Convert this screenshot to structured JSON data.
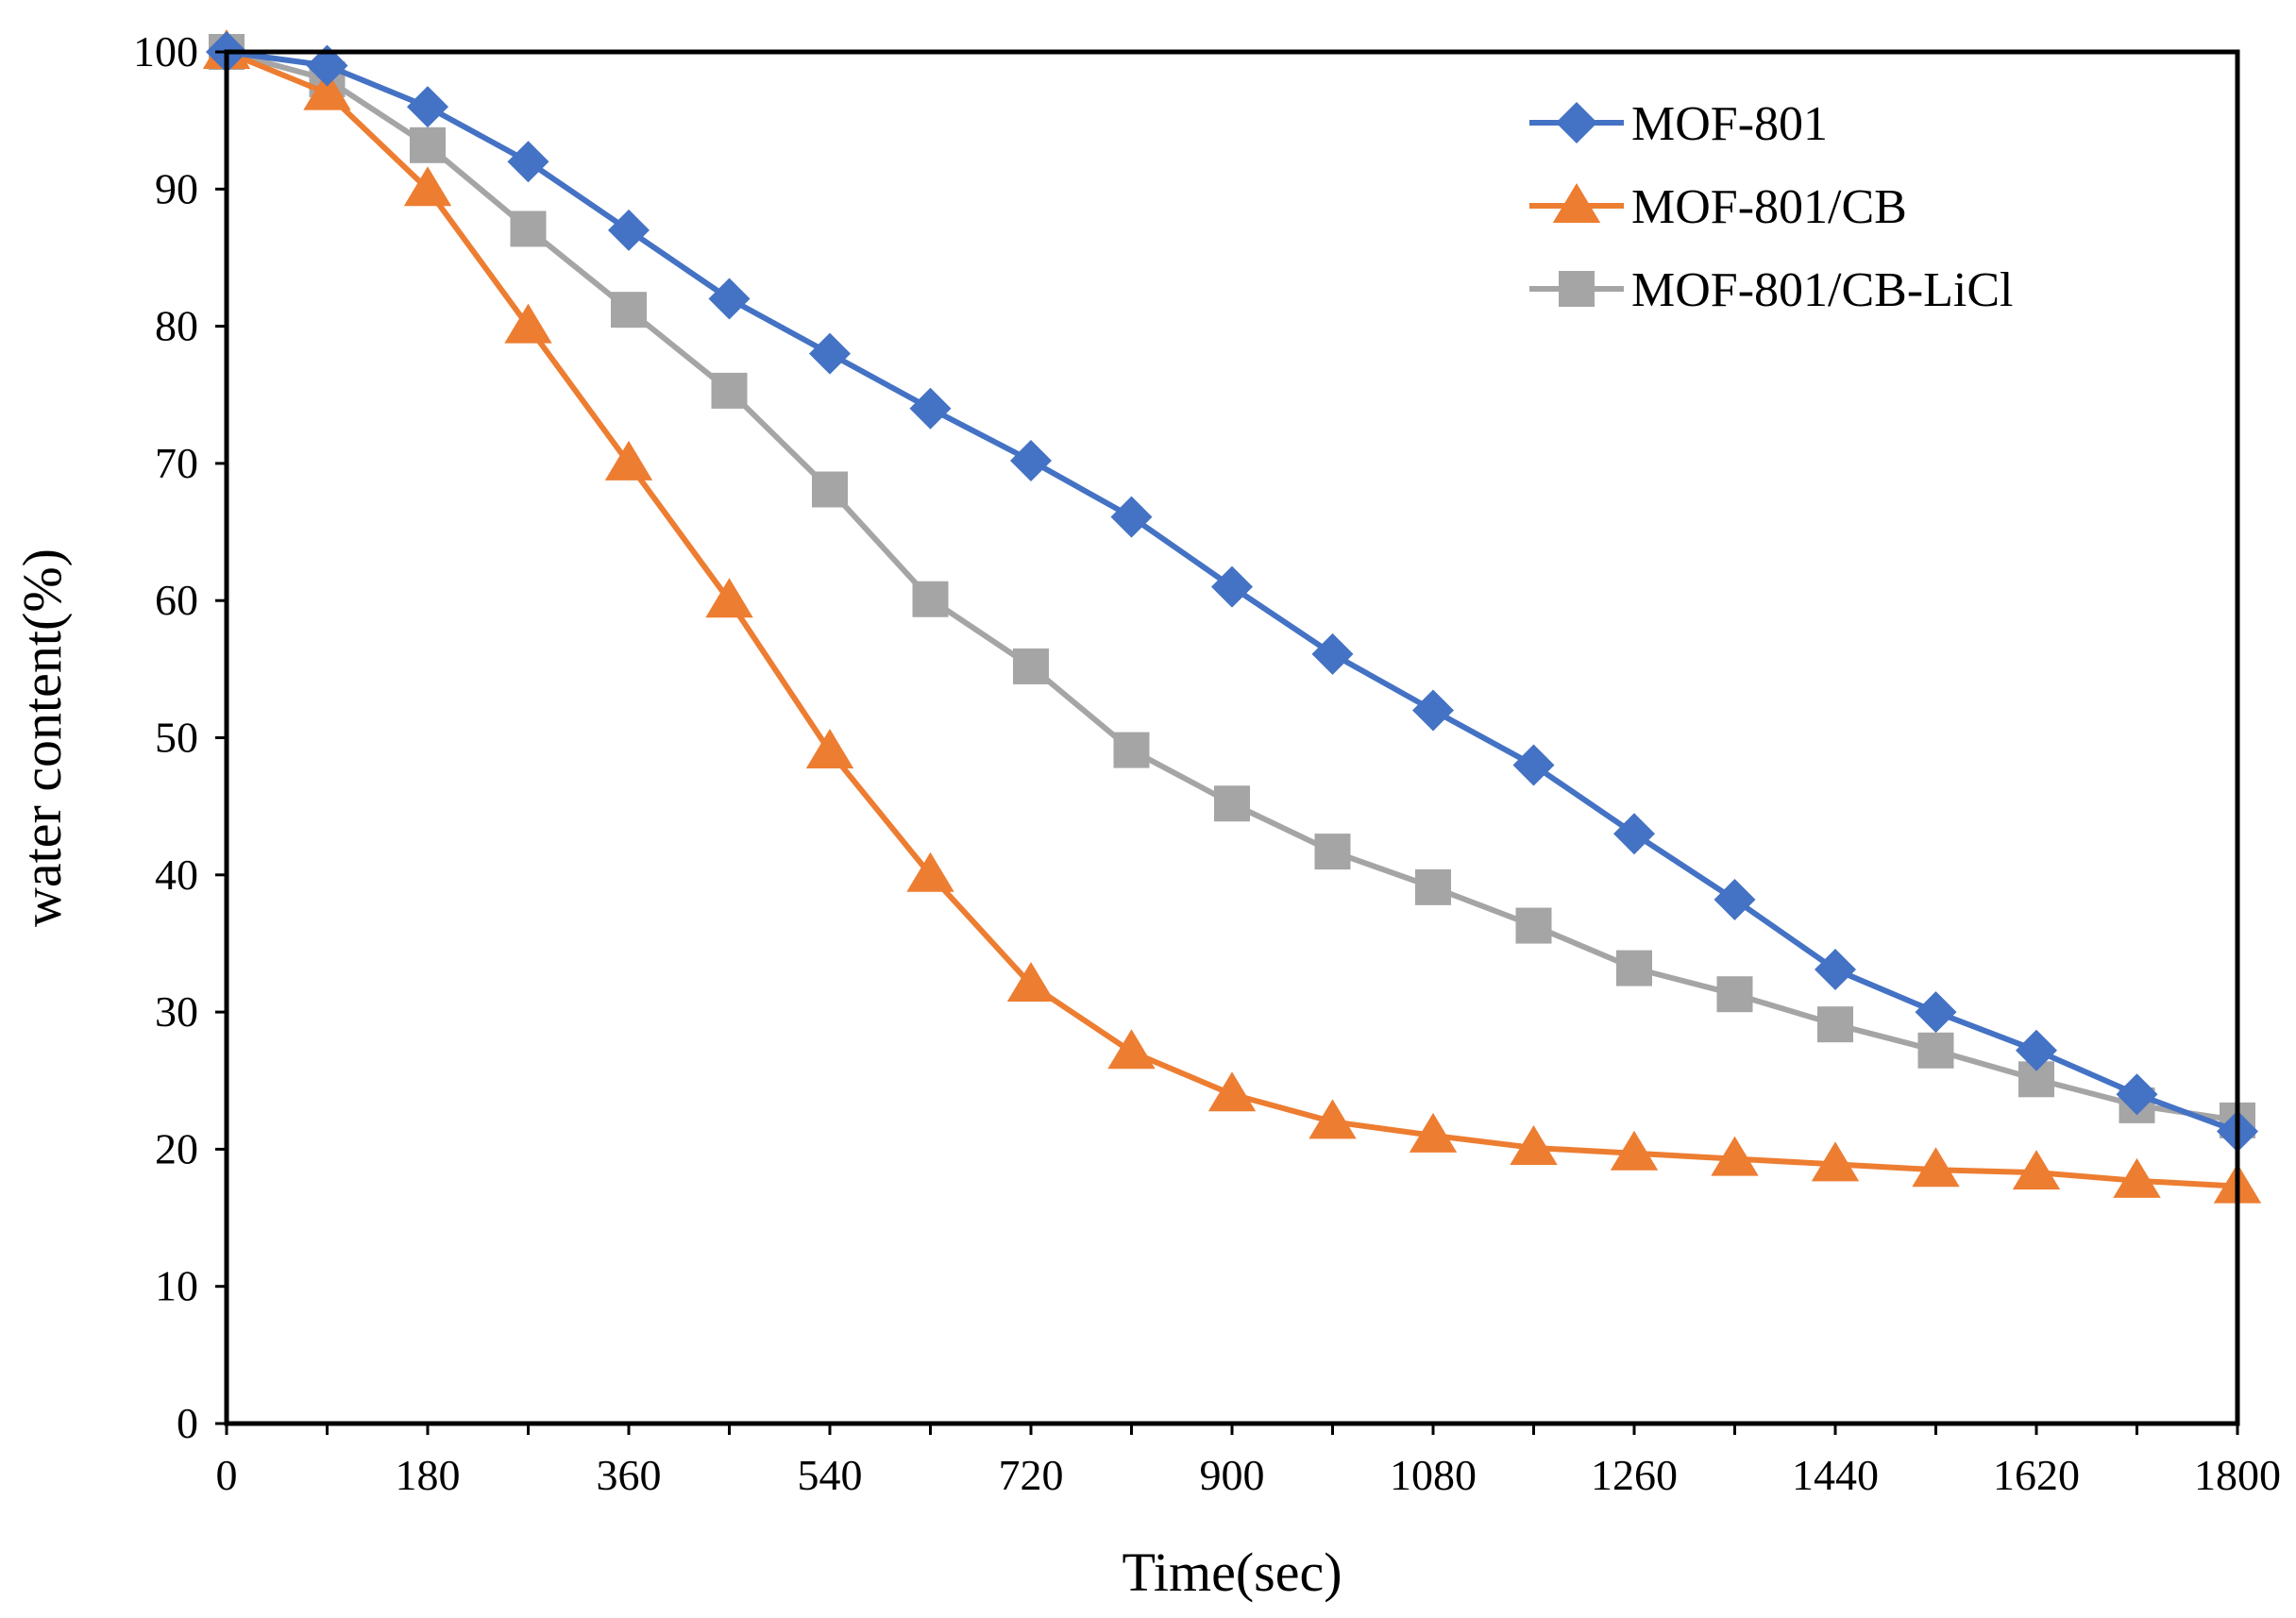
{
  "chart_data": {
    "type": "line",
    "title": "",
    "xlabel": "Time(sec)",
    "ylabel": "water content(%)",
    "xlim": [
      0,
      1800
    ],
    "ylim": [
      0,
      100
    ],
    "xticks": [
      0,
      180,
      360,
      540,
      720,
      900,
      1080,
      1260,
      1440,
      1620,
      1800
    ],
    "yticks": [
      0,
      10,
      20,
      30,
      40,
      50,
      60,
      70,
      80,
      90,
      100
    ],
    "grid": false,
    "legend_position": "top-right",
    "x": [
      0,
      90,
      180,
      270,
      360,
      450,
      540,
      630,
      720,
      810,
      900,
      990,
      1080,
      1170,
      1260,
      1350,
      1440,
      1530,
      1620,
      1710,
      1800
    ],
    "series": [
      {
        "name": "MOF-801",
        "color": "#4472C4",
        "marker": "diamond",
        "values": [
          100,
          99,
          96,
          92,
          87,
          82,
          78,
          74,
          70.2,
          66.1,
          61,
          56.1,
          52,
          48,
          43,
          38.2,
          33.1,
          30,
          27.2,
          24,
          21.3
        ]
      },
      {
        "name": "MOF-801/CB",
        "color": "#ED7D31",
        "marker": "triangle",
        "values": [
          100,
          97,
          90,
          80,
          70,
          60,
          49,
          40,
          32,
          27.1,
          24,
          22,
          21,
          20.1,
          19.7,
          19.3,
          18.9,
          18.5,
          18.3,
          17.7,
          17.3
        ]
      },
      {
        "name": "MOF-801/CB-LiCl",
        "color": "#A5A5A5",
        "marker": "square",
        "values": [
          100,
          98,
          93.2,
          87.1,
          81.2,
          75.3,
          68.1,
          60.1,
          55.2,
          49.1,
          45.2,
          41.7,
          39.1,
          36.3,
          33.2,
          31.3,
          29.1,
          27.2,
          25.1,
          23.2,
          22.1
        ]
      }
    ]
  }
}
